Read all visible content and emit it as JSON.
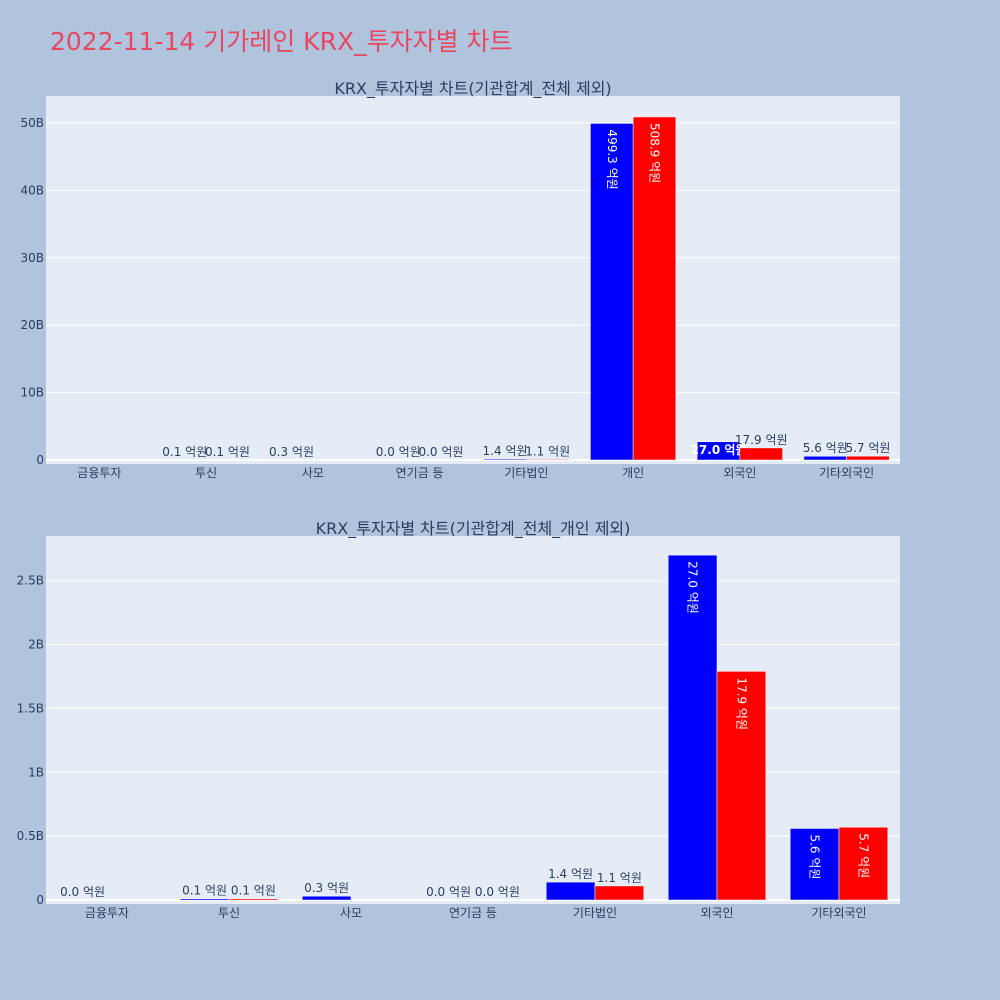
{
  "page": {
    "title": "2022-11-14 기가레인 KRX_투자자별 차트"
  },
  "colors": {
    "background": "#b0c4de",
    "plot_bg": "#e5ecf6",
    "series_a": "#0000ff",
    "series_b": "#ff0000",
    "title": "#e8475f"
  },
  "chart_data": [
    {
      "type": "bar",
      "title": "KRX_투자자별 차트(기관합계_전체 제외)",
      "categories": [
        "금융투자",
        "투신",
        "사모",
        "연기금 등",
        "기타법인",
        "개인",
        "외국인",
        "기타외국인"
      ],
      "y_ticks": [
        {
          "value": 0,
          "label": "0"
        },
        {
          "value": 10000000000,
          "label": "10B"
        },
        {
          "value": 20000000000,
          "label": "20B"
        },
        {
          "value": 30000000000,
          "label": "30B"
        },
        {
          "value": 40000000000,
          "label": "40B"
        },
        {
          "value": 50000000000,
          "label": "50B"
        }
      ],
      "ylim": [
        0,
        54000000000
      ],
      "grid": true,
      "series": [
        {
          "color": "#0000ff",
          "values": [
            0,
            10000000,
            30000000,
            0,
            140000000,
            49930000000,
            2700000000,
            560000000
          ],
          "labels": [
            "",
            "0.1 억원",
            "0.3 억원",
            "0.0 억원",
            "1.4 억원",
            "499.3 억원",
            "27.0 억원",
            "5.6 억원"
          ]
        },
        {
          "color": "#ff0000",
          "values": [
            0,
            10000000,
            0,
            0,
            110000000,
            50890000000,
            1790000000,
            570000000
          ],
          "labels": [
            "",
            "0.1 억원",
            "",
            "0.0 억원",
            "1.1 억원",
            "508.9 억원",
            "17.9 억원",
            "5.7 억원"
          ]
        }
      ]
    },
    {
      "type": "bar",
      "title": "KRX_투자자별 차트(기관합계_전체_개인 제외)",
      "categories": [
        "금융투자",
        "투신",
        "사모",
        "연기금 등",
        "기타법인",
        "외국인",
        "기타외국인"
      ],
      "y_ticks": [
        {
          "value": 0,
          "label": "0"
        },
        {
          "value": 500000000,
          "label": "0.5B"
        },
        {
          "value": 1000000000,
          "label": "1B"
        },
        {
          "value": 1500000000,
          "label": "1.5B"
        },
        {
          "value": 2000000000,
          "label": "2B"
        },
        {
          "value": 2500000000,
          "label": "2.5B"
        }
      ],
      "ylim": [
        0,
        2850000000
      ],
      "grid": true,
      "series": [
        {
          "color": "#0000ff",
          "values": [
            0,
            10000000,
            30000000,
            0,
            140000000,
            2700000000,
            560000000
          ],
          "labels": [
            "0.0 억원",
            "0.1 억원",
            "0.3 억원",
            "0.0 억원",
            "1.4 억원",
            "27.0 억원",
            "5.6 억원"
          ]
        },
        {
          "color": "#ff0000",
          "values": [
            0,
            10000000,
            0,
            0,
            110000000,
            1790000000,
            570000000
          ],
          "labels": [
            "",
            "0.1 억원",
            "",
            "0.0 억원",
            "1.1 억원",
            "17.9 억원",
            "5.7 억원"
          ]
        }
      ]
    }
  ]
}
